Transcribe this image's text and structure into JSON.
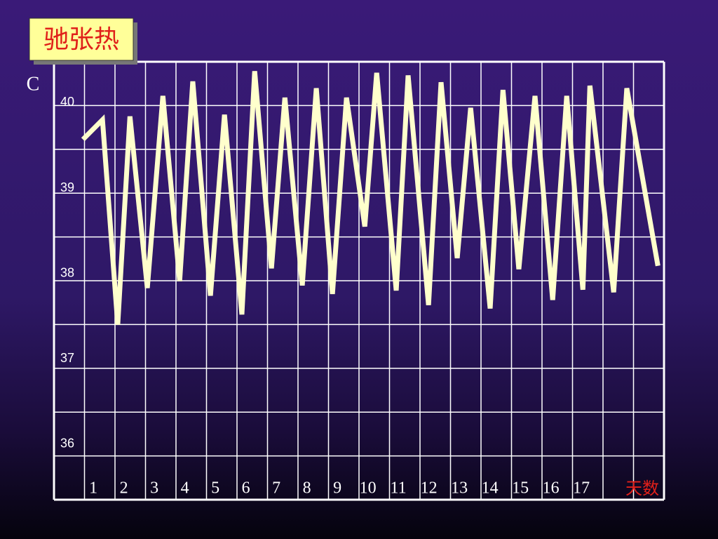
{
  "chart_data": {
    "type": "line",
    "title": "驰张热",
    "y_label": "C",
    "x_label": "天数",
    "x": [
      0.66,
      1.3,
      1.8,
      2.2,
      2.77,
      3.28,
      3.83,
      4.26,
      4.84,
      5.3,
      5.87,
      6.29,
      6.84,
      7.28,
      7.85,
      8.31,
      8.84,
      9.3,
      9.9,
      10.29,
      10.93,
      11.32,
      11.99,
      12.4,
      12.93,
      13.37,
      14.01,
      14.43,
      14.95,
      15.48,
      16.06,
      16.52,
      17.05,
      17.28,
      18.06,
      18.49,
      19.51
    ],
    "series": [
      {
        "color": "#ffffcc",
        "values": [
          39.57,
          39.8,
          37.4,
          39.84,
          37.83,
          40.08,
          37.91,
          40.25,
          37.74,
          39.86,
          37.52,
          40.37,
          38.06,
          40.06,
          37.86,
          40.17,
          37.76,
          40.06,
          38.55,
          40.35,
          37.8,
          40.32,
          37.63,
          40.24,
          38.18,
          39.94,
          37.59,
          40.15,
          38.05,
          40.08,
          37.69,
          40.08,
          37.81,
          40.2,
          37.78,
          40.17,
          38.09
        ]
      }
    ],
    "xlim": [
      -0.29,
      19.71
    ],
    "xticks": [
      1,
      2,
      3,
      4,
      5,
      6,
      7,
      8,
      9,
      10,
      11,
      12,
      13,
      14,
      15,
      16,
      17
    ],
    "ylim": [
      35.35,
      40.48
    ],
    "yticks": [
      36,
      37,
      38,
      39,
      40
    ]
  }
}
